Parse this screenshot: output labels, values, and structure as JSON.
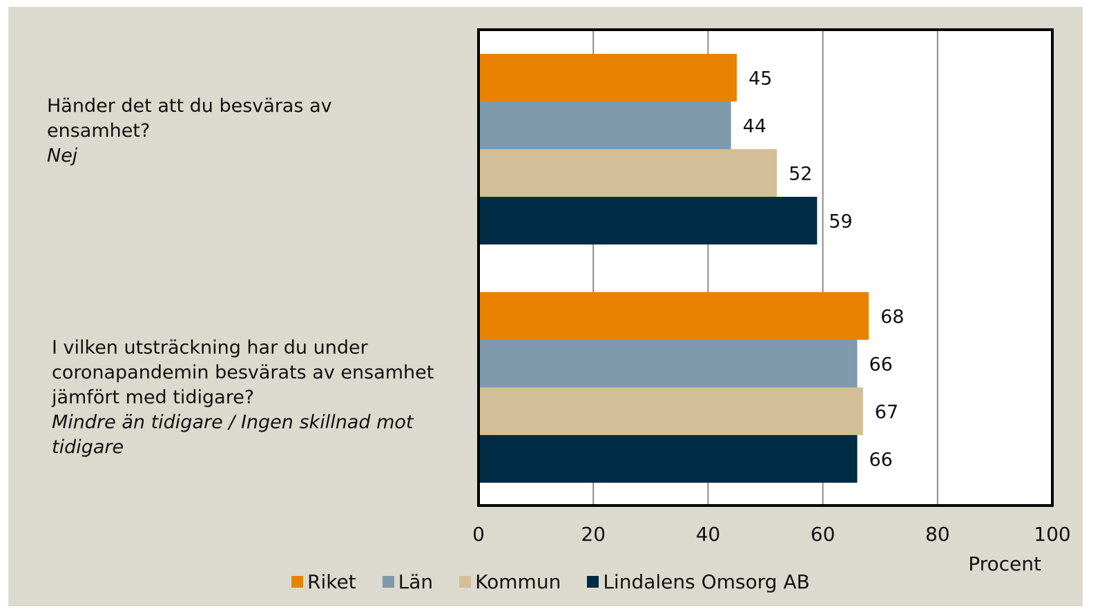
{
  "chart_data": {
    "type": "bar",
    "orientation": "horizontal",
    "categories": [
      {
        "question": "Händer det att du besväras av ensamhet?",
        "answer": "Nej"
      },
      {
        "question": "I vilken utsträckning har du under coronapandemin besvärats av ensamhet jämfört med tidigare?",
        "answer": "Mindre än tidigare / Ingen skillnad mot tidigare"
      }
    ],
    "series": [
      {
        "name": "Riket",
        "color": "#e88200",
        "values": [
          45,
          68
        ]
      },
      {
        "name": "Län",
        "color": "#7f9aad",
        "values": [
          44,
          66
        ]
      },
      {
        "name": "Kommun",
        "color": "#d3bf97",
        "values": [
          52,
          67
        ]
      },
      {
        "name": "Lindalens Omsorg AB",
        "color": "#002b45",
        "values": [
          59,
          66
        ]
      }
    ],
    "xlabel": "Procent",
    "xlim": [
      0,
      100
    ],
    "xticks": [
      0,
      20,
      40,
      60,
      80,
      100
    ],
    "grid": true,
    "legend_position": "bottom"
  }
}
